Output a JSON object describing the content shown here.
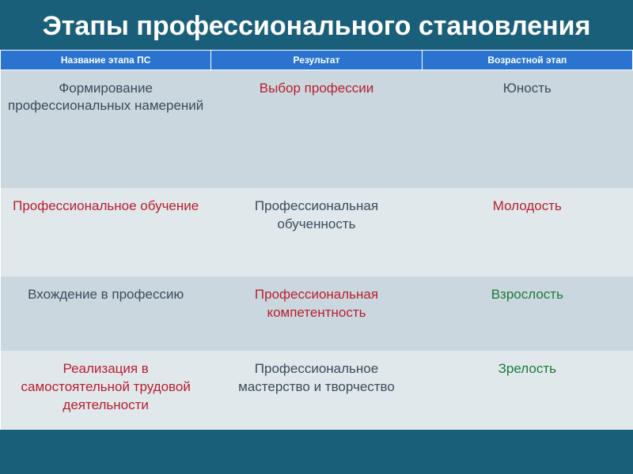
{
  "title": "Этапы профессионального становления",
  "table": {
    "columns": [
      "Название этапа ПС",
      "Результат",
      "Возрастной этап"
    ],
    "rows": [
      [
        {
          "text": "Формирование профессиональных намерений",
          "color": "dark"
        },
        {
          "text": "Выбор профессии",
          "color": "red"
        },
        {
          "text": "Юность",
          "color": "dark"
        }
      ],
      [
        {
          "text": "Профессиональное обучение",
          "color": "red"
        },
        {
          "text": "Профессиональная обученность",
          "color": "dark"
        },
        {
          "text": "Молодость",
          "color": "red"
        }
      ],
      [
        {
          "text": "Вхождение в профессию",
          "color": "dark"
        },
        {
          "text": "Профессиональная компетентность",
          "color": "red"
        },
        {
          "text": "Взрослость",
          "color": "green"
        }
      ],
      [
        {
          "text": "Реализация в самостоятельной трудовой  деятельности",
          "color": "red"
        },
        {
          "text": "Профессиональное мастерство и творчество",
          "color": "dark"
        },
        {
          "text": "Зрелость",
          "color": "green"
        }
      ]
    ],
    "header_bg": "#2a74d0",
    "header_text_color": "#ffffff",
    "row_bg_odd": "#cbd7de",
    "row_bg_even": "#e0e8ec",
    "color_dark": "#3a4b5c",
    "color_red": "#b81e2e",
    "color_green": "#1a7a3a",
    "title_bg": "#1a5f7a",
    "title_color": "#ffffff",
    "title_fontsize": 34,
    "header_fontsize": 12,
    "cell_fontsize": 17
  }
}
